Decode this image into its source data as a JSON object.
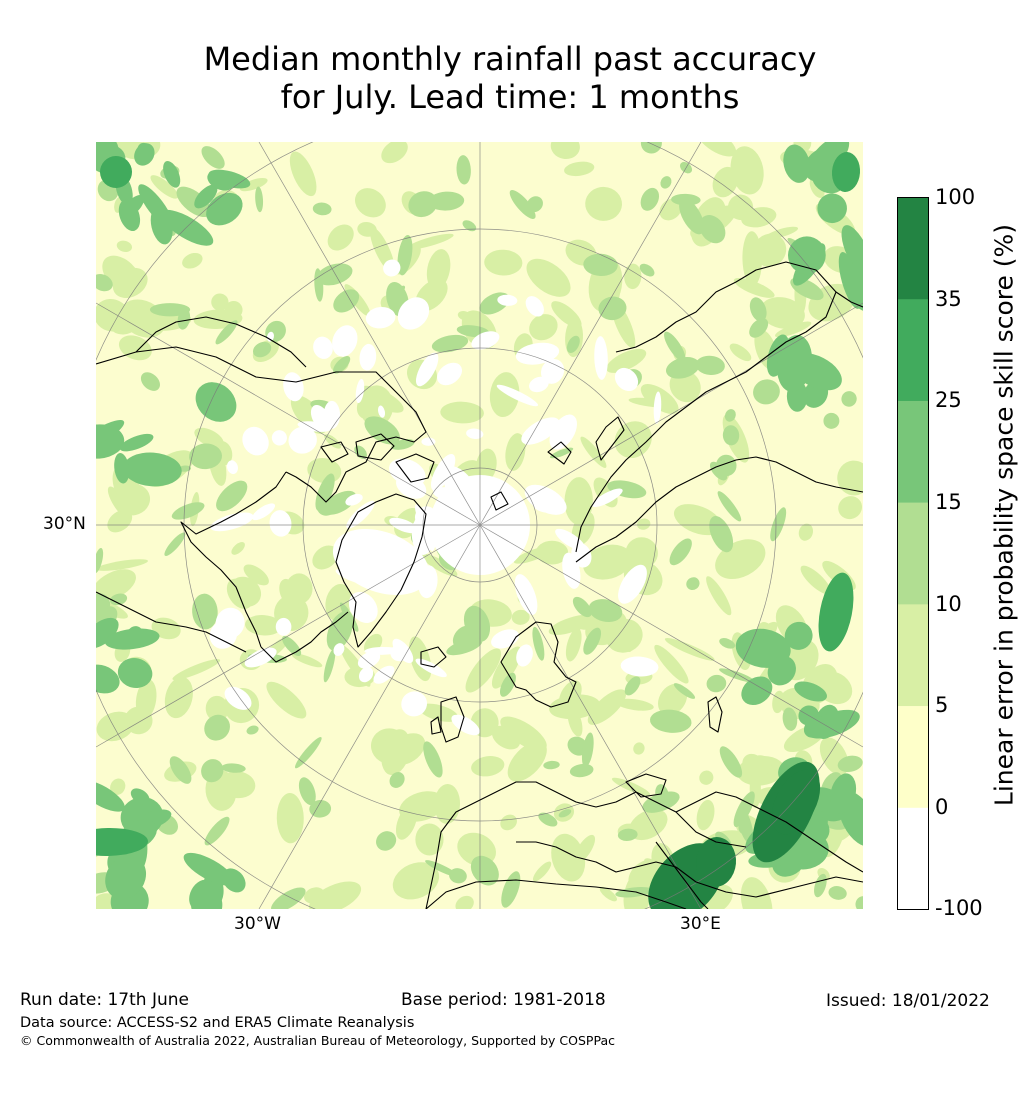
{
  "title_lines": [
    "Median monthly rainfall past accuracy",
    "for July. Lead time: 1 months"
  ],
  "map": {
    "projection": "north-polar-stereographic",
    "latitude_label": "30°N",
    "longitude_labels": [
      "30°W",
      "30°E"
    ],
    "colors": {
      "ocean_bg": "#fcfdcf",
      "cat_neg": "#ffffff",
      "cat_0_5": "#feffc9",
      "cat_5_10": "#d8efa5",
      "cat_10_15": "#b1de92",
      "cat_15_25": "#78c679",
      "cat_25_35": "#41ab5d",
      "cat_35_100": "#238443",
      "coast": "#000000",
      "grid": "#7a7a7a"
    }
  },
  "colorbar": {
    "label": "Linear error in probability space skill score (%)",
    "ticks": [
      "100",
      "35",
      "25",
      "15",
      "10",
      "5",
      "0",
      "-100"
    ],
    "colors": [
      "#238443",
      "#41ab5d",
      "#78c679",
      "#b1de92",
      "#d8efa5",
      "#feffc9",
      "#ffffff"
    ]
  },
  "footer": {
    "run_date": "Run date: 17th June",
    "base_period": "Base period: 1981-2018",
    "issued": "Issued: 18/01/2022",
    "data_source": "Data source: ACCESS-S2 and ERA5 Climate Reanalysis",
    "copyright": "© Commonwealth of Australia 2022, Australian Bureau of Meteorology, Supported by COSPPac"
  }
}
